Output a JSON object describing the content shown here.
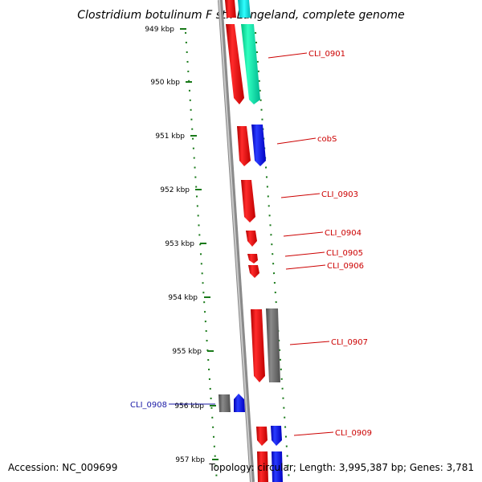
{
  "title": "Clostridium botulinum F str. Langeland, complete genome",
  "footer": {
    "accession": "Accession: NC_009699",
    "topology": "Topology: circular; Length: 3,995,387 bp; Genes: 3,781"
  },
  "ticks": [
    "949 kbp",
    "950 kbp",
    "951 kbp",
    "952 kbp",
    "953 kbp",
    "954 kbp",
    "955 kbp",
    "956 kbp",
    "957 kbp"
  ],
  "gene_labels": [
    "CLI_0901",
    "cobS",
    "CLI_0903",
    "CLI_0904",
    "CLI_0905",
    "CLI_0906",
    "CLI_0907",
    "CLI_0908",
    "CLI_0909"
  ],
  "colors": {
    "forward_label": "#cc0000",
    "reverse_label": "#1a1aa6",
    "tick": "#1a7a1a",
    "backbone": "#8c8c8c",
    "cds_red": "#ee1111",
    "cds_blue": "#1122ee",
    "cds_gray": "#6a6a6a",
    "cds_teal": "#11e0a0"
  }
}
